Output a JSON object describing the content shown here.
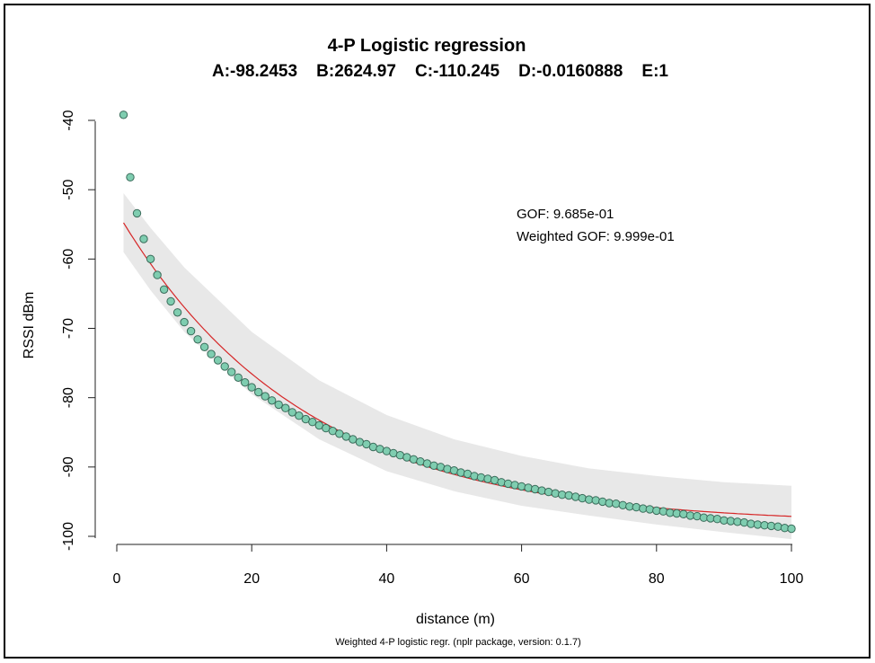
{
  "chart_data": {
    "type": "scatter",
    "title": "4-P Logistic regression",
    "subtitle": "A:-98.2453    B:2624.97    C:-110.245    D:-0.0160888    E:1",
    "xlabel": "distance (m)",
    "ylabel": "RSSI dBm",
    "caption": "Weighted 4-P logistic regr. (nplr package, version: 0.1.7)",
    "xlim": [
      0,
      100
    ],
    "ylim": [
      -100,
      -40
    ],
    "x_ticks": [
      0,
      20,
      40,
      60,
      80,
      100
    ],
    "y_ticks": [
      -100,
      -90,
      -80,
      -70,
      -60,
      -50,
      -40
    ],
    "grid": false,
    "legend": "none",
    "annotations": [
      {
        "label": "GOF: 9.685e-01"
      },
      {
        "label": "Weighted GOF: 9.999e-01"
      }
    ],
    "fit_params": {
      "A": -98.2453,
      "B": 2624.97,
      "C": -110.245,
      "D": -0.0160888,
      "E": 1
    },
    "fit_curve": {
      "x_start": 1,
      "x_end": 100,
      "y_start": -54.8,
      "y_end": -97.1,
      "color": "#d62728"
    },
    "confidence_band": {
      "x": [
        1,
        5,
        10,
        20,
        30,
        40,
        50,
        60,
        70,
        80,
        90,
        100
      ],
      "lower": [
        -59.0,
        -64.5,
        -70.5,
        -79.5,
        -86.0,
        -90.6,
        -93.5,
        -95.6,
        -97.0,
        -98.3,
        -99.4,
        -100.4
      ],
      "upper": [
        -50.5,
        -55.5,
        -61.2,
        -70.5,
        -77.5,
        -82.5,
        -86.0,
        -88.4,
        -90.2,
        -91.3,
        -92.2,
        -92.7
      ],
      "color": "#e8e8e8"
    },
    "points_color": "#7fcdb0",
    "points_stroke": "#3a6b5a",
    "series": [
      {
        "x": [
          1,
          2,
          3,
          4,
          5,
          6,
          7,
          8,
          9,
          10,
          11,
          12,
          13,
          14,
          15,
          16,
          17,
          18,
          19,
          20,
          21,
          22,
          23,
          24,
          25,
          26,
          27,
          28,
          29,
          30,
          31,
          32,
          33,
          34,
          35,
          36,
          37,
          38,
          39,
          40,
          41,
          42,
          43,
          44,
          45,
          46,
          47,
          48,
          49,
          50,
          51,
          52,
          53,
          54,
          55,
          56,
          57,
          58,
          59,
          60,
          61,
          62,
          63,
          64,
          65,
          66,
          67,
          68,
          69,
          70,
          71,
          72,
          73,
          74,
          75,
          76,
          77,
          78,
          79,
          80,
          81,
          82,
          83,
          84,
          85,
          86,
          87,
          88,
          89,
          90,
          91,
          92,
          93,
          94,
          95,
          96,
          97,
          98,
          99,
          100
        ],
        "y": [
          -39.2,
          -48.2,
          -53.4,
          -57.1,
          -60.0,
          -62.3,
          -64.4,
          -66.1,
          -67.7,
          -69.1,
          -70.4,
          -71.6,
          -72.7,
          -73.7,
          -74.6,
          -75.5,
          -76.3,
          -77.1,
          -77.8,
          -78.5,
          -79.2,
          -79.8,
          -80.4,
          -81.0,
          -81.5,
          -82.1,
          -82.6,
          -83.1,
          -83.5,
          -84.0,
          -84.4,
          -84.8,
          -85.2,
          -85.6,
          -86.0,
          -86.4,
          -86.7,
          -87.1,
          -87.4,
          -87.7,
          -88.0,
          -88.3,
          -88.6,
          -88.9,
          -89.2,
          -89.5,
          -89.8,
          -90.0,
          -90.3,
          -90.5,
          -90.8,
          -91.0,
          -91.3,
          -91.5,
          -91.7,
          -91.9,
          -92.2,
          -92.4,
          -92.6,
          -92.8,
          -93.0,
          -93.2,
          -93.4,
          -93.6,
          -93.8,
          -94.0,
          -94.1,
          -94.3,
          -94.5,
          -94.7,
          -94.8,
          -95.0,
          -95.2,
          -95.3,
          -95.5,
          -95.7,
          -95.8,
          -96.0,
          -96.1,
          -96.3,
          -96.4,
          -96.6,
          -96.7,
          -96.8,
          -97.0,
          -97.1,
          -97.3,
          -97.4,
          -97.5,
          -97.7,
          -97.8,
          -97.9,
          -98.0,
          -98.2,
          -98.3,
          -98.4,
          -98.5,
          -98.6,
          -98.8,
          -98.9
        ]
      }
    ]
  }
}
